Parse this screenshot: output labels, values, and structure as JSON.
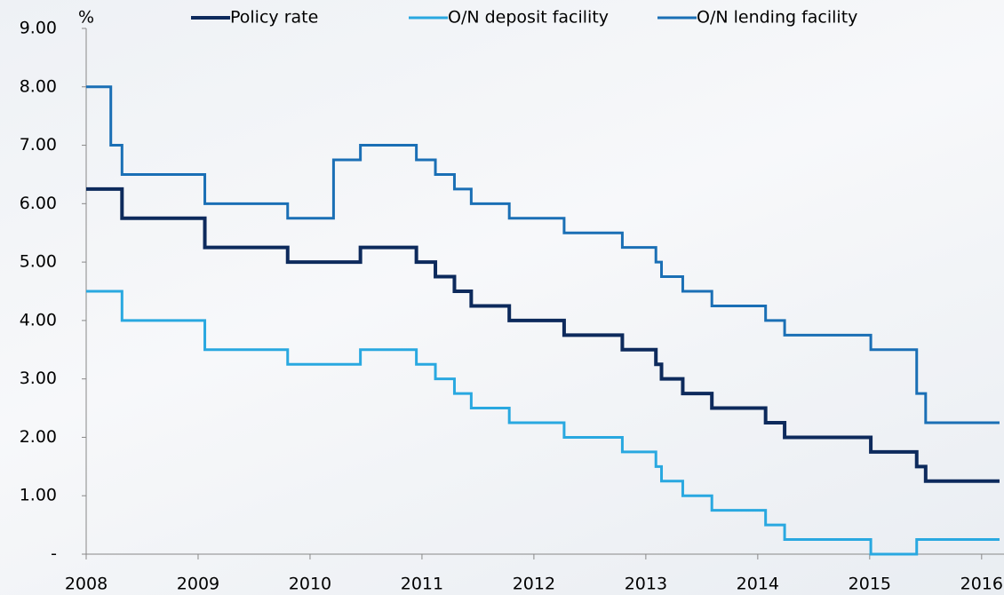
{
  "chart_data": {
    "type": "line",
    "step": "post",
    "y_label": "%",
    "xlim": [
      2008,
      2016.2
    ],
    "xticks": [
      2008,
      2009,
      2010,
      2011,
      2012,
      2013,
      2014,
      2015,
      2016
    ],
    "ylim": [
      0,
      9
    ],
    "yticks": [
      {
        "value": 0,
        "label": "-"
      },
      {
        "value": 1,
        "label": "1.00"
      },
      {
        "value": 2,
        "label": "2.00"
      },
      {
        "value": 3,
        "label": "3.00"
      },
      {
        "value": 4,
        "label": "4.00"
      },
      {
        "value": 5,
        "label": "5.00"
      },
      {
        "value": 6,
        "label": "6.00"
      },
      {
        "value": 7,
        "label": "7.00"
      },
      {
        "value": 8,
        "label": "8.00"
      },
      {
        "value": 9,
        "label": "9.00"
      }
    ],
    "series": [
      {
        "name": "Policy rate",
        "color": "#0d2a5c",
        "x": [
          2008,
          2008.32,
          2009.06,
          2009.8,
          2010.45,
          2010.95,
          2011.12,
          2011.29,
          2011.44,
          2011.78,
          2012.27,
          2012.79,
          2013.09,
          2013.14,
          2013.33,
          2013.59,
          2014.07,
          2014.24,
          2015.01,
          2015.42,
          2015.5,
          2016.16
        ],
        "values": [
          6.25,
          5.75,
          5.25,
          5.0,
          5.25,
          5.0,
          4.75,
          4.5,
          4.25,
          4.0,
          3.75,
          3.5,
          3.25,
          3.0,
          2.75,
          2.5,
          2.25,
          2.0,
          1.75,
          1.5,
          1.25,
          1.25
        ]
      },
      {
        "name": "O/N deposit facility",
        "color": "#29a8e0",
        "x": [
          2008,
          2008.32,
          2009.06,
          2009.8,
          2010.45,
          2010.95,
          2011.12,
          2011.29,
          2011.44,
          2011.78,
          2012.27,
          2012.79,
          2013.09,
          2013.14,
          2013.33,
          2013.59,
          2014.07,
          2014.24,
          2015.01,
          2015.42,
          2016.16
        ],
        "values": [
          4.5,
          4.0,
          3.5,
          3.25,
          3.5,
          3.25,
          3.0,
          2.75,
          2.5,
          2.25,
          2.0,
          1.75,
          1.5,
          1.25,
          1.0,
          0.75,
          0.5,
          0.25,
          0,
          0.25,
          0.25
        ]
      },
      {
        "name": "O/N lending facility",
        "color": "#1a6fb5",
        "x": [
          2008,
          2008.22,
          2008.32,
          2009.06,
          2009.8,
          2010.21,
          2010.45,
          2010.95,
          2011.12,
          2011.29,
          2011.44,
          2011.78,
          2012.27,
          2012.79,
          2013.09,
          2013.14,
          2013.33,
          2013.59,
          2014.07,
          2014.24,
          2015.01,
          2015.42,
          2015.5,
          2016.16
        ],
        "values": [
          8.0,
          7.0,
          6.5,
          6.0,
          5.75,
          6.75,
          7.0,
          6.75,
          6.5,
          6.25,
          6.0,
          5.75,
          5.5,
          5.25,
          5.0,
          4.75,
          4.5,
          4.25,
          4.0,
          3.75,
          3.5,
          2.75,
          2.25,
          2.25
        ]
      }
    ]
  }
}
